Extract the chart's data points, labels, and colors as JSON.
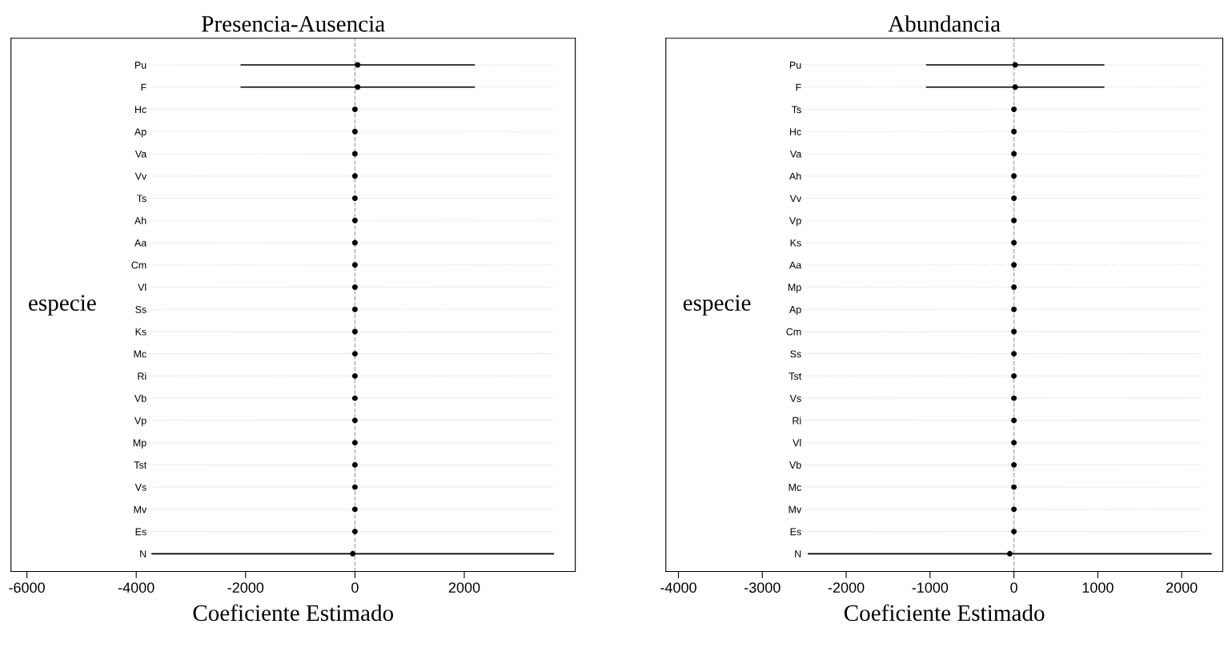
{
  "chart_data": [
    {
      "type": "scatter",
      "orientation": "horizontal",
      "title": "Presencia-Ausencia",
      "xlabel": "Coeficiente Estimado",
      "ylabel": "especie",
      "categories": [
        "Pu",
        "F",
        "Hc",
        "Ap",
        "Va",
        "Vv",
        "Ts",
        "Ah",
        "Aa",
        "Cm",
        "Vl",
        "Ss",
        "Ks",
        "Mc",
        "Ri",
        "Vb",
        "Vp",
        "Mp",
        "Tst",
        "Vs",
        "Mv",
        "Es",
        "N"
      ],
      "series": [
        {
          "color": "#000000",
          "values": [
            50,
            50,
            0,
            0,
            0,
            0,
            0,
            0,
            0,
            0,
            0,
            0,
            0,
            0,
            0,
            0,
            0,
            0,
            0,
            0,
            0,
            0,
            -40
          ],
          "errors": [
            2130,
            2130,
            null,
            null,
            null,
            null,
            null,
            null,
            null,
            null,
            null,
            null,
            null,
            null,
            null,
            null,
            null,
            null,
            null,
            null,
            null,
            null,
            3670
          ]
        }
      ],
      "xlim": [
        -6290,
        4030
      ],
      "xticks": [
        -6000,
        -4000,
        -2000,
        0,
        2000
      ],
      "grid": "y",
      "marker": "circle",
      "ref_lines": [
        {
          "axis": "x",
          "value": 0,
          "color": "#aaaaaa",
          "line_style": "dashed"
        }
      ]
    },
    {
      "type": "scatter",
      "orientation": "horizontal",
      "title": "Abundancia",
      "xlabel": "Coeficiente Estimado",
      "ylabel": "especie",
      "categories": [
        "Pu",
        "F",
        "Ts",
        "Hc",
        "Va",
        "Ah",
        "Vv",
        "Vp",
        "Ks",
        "Aa",
        "Mp",
        "Ap",
        "Cm",
        "Ss",
        "Tst",
        "Vs",
        "Ri",
        "Vl",
        "Vb",
        "Mc",
        "Mv",
        "Es",
        "N"
      ],
      "series": [
        {
          "color": "#000000",
          "values": [
            15,
            15,
            0,
            0,
            0,
            0,
            0,
            0,
            0,
            0,
            0,
            0,
            0,
            0,
            0,
            0,
            0,
            0,
            0,
            0,
            0,
            0,
            -50
          ],
          "errors": [
            1055,
            1055,
            null,
            null,
            null,
            null,
            null,
            null,
            null,
            null,
            null,
            null,
            null,
            null,
            null,
            null,
            null,
            null,
            null,
            null,
            null,
            null,
            2400
          ]
        }
      ],
      "xlim": [
        -4150,
        2490
      ],
      "xticks": [
        -4000,
        -3000,
        -2000,
        -1000,
        0,
        1000,
        2000
      ],
      "grid": "y",
      "marker": "circle",
      "ref_lines": [
        {
          "axis": "x",
          "value": 0,
          "color": "#aaaaaa",
          "line_style": "dashed"
        }
      ]
    }
  ]
}
